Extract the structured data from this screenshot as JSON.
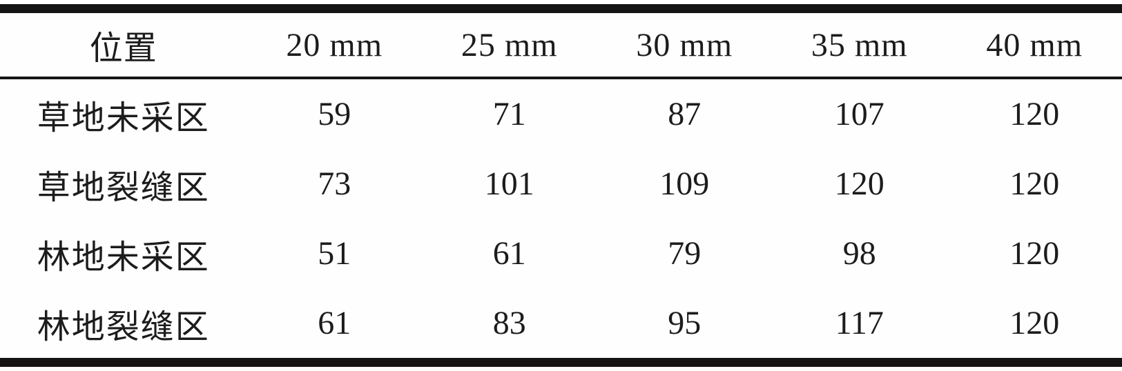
{
  "table": {
    "columns": [
      "位置",
      "20 mm",
      "25 mm",
      "30 mm",
      "35 mm",
      "40 mm"
    ],
    "rows": [
      {
        "label": "草地未采区",
        "values": [
          "59",
          "71",
          "87",
          "107",
          "120"
        ]
      },
      {
        "label": "草地裂缝区",
        "values": [
          "73",
          "101",
          "109",
          "120",
          "120"
        ]
      },
      {
        "label": "林地未采区",
        "values": [
          "51",
          "61",
          "79",
          "98",
          "120"
        ]
      },
      {
        "label": "林地裂缝区",
        "values": [
          "61",
          "83",
          "95",
          "117",
          "120"
        ]
      }
    ]
  },
  "chart_data": {
    "type": "table",
    "categories": [
      "20 mm",
      "25 mm",
      "30 mm",
      "35 mm",
      "40 mm"
    ],
    "series": [
      {
        "name": "草地未采区",
        "values": [
          59,
          71,
          87,
          107,
          120
        ]
      },
      {
        "name": "草地裂缝区",
        "values": [
          73,
          101,
          109,
          120,
          120
        ]
      },
      {
        "name": "林地未采区",
        "values": [
          51,
          61,
          79,
          98,
          120
        ]
      },
      {
        "name": "林地裂缝区",
        "values": [
          61,
          83,
          95,
          117,
          120
        ]
      }
    ]
  },
  "colors": {
    "text": "#1c1c1c",
    "rule": "#141414",
    "background": "#fefefe"
  }
}
